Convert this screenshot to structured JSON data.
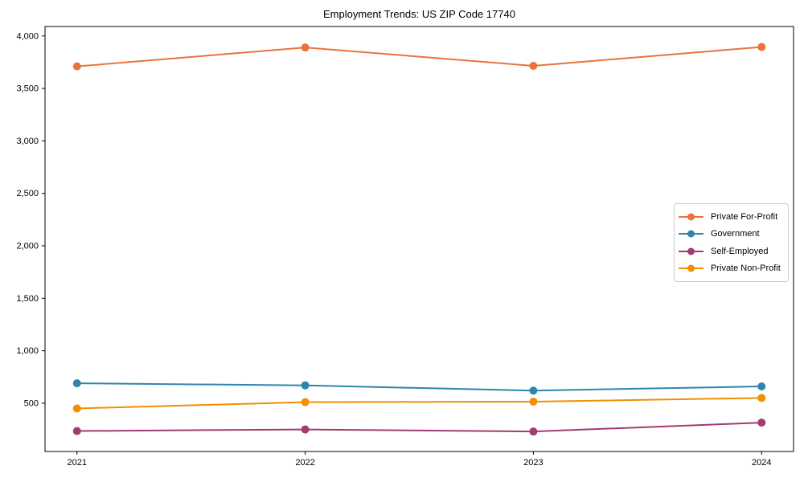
{
  "figure": {
    "background": "#ffffff",
    "spine_color": "#000000",
    "text_color": "#000000"
  },
  "chart_data": {
    "type": "line",
    "title": "Employment Trends: US ZIP Code 17740",
    "xlabel": "",
    "ylabel": "",
    "categories": [
      "2021",
      "2022",
      "2023",
      "2024"
    ],
    "series": [
      {
        "name": "Private For-Profit",
        "color": "#E8743B",
        "values": [
          3710,
          3890,
          3715,
          3895
        ]
      },
      {
        "name": "Government",
        "color": "#2E86AB",
        "values": [
          690,
          670,
          620,
          660
        ]
      },
      {
        "name": "Self-Employed",
        "color": "#A23B72",
        "values": [
          235,
          250,
          230,
          315
        ]
      },
      {
        "name": "Private Non-Profit",
        "color": "#F18F01",
        "values": [
          450,
          510,
          515,
          550
        ]
      }
    ],
    "yticks": [
      500,
      1000,
      1500,
      2000,
      2500,
      3000,
      3500,
      4000
    ],
    "ylim": [
      40,
      4090
    ],
    "grid": false,
    "marker": "circle",
    "tick_format": "comma",
    "legend_position": "right-center"
  }
}
